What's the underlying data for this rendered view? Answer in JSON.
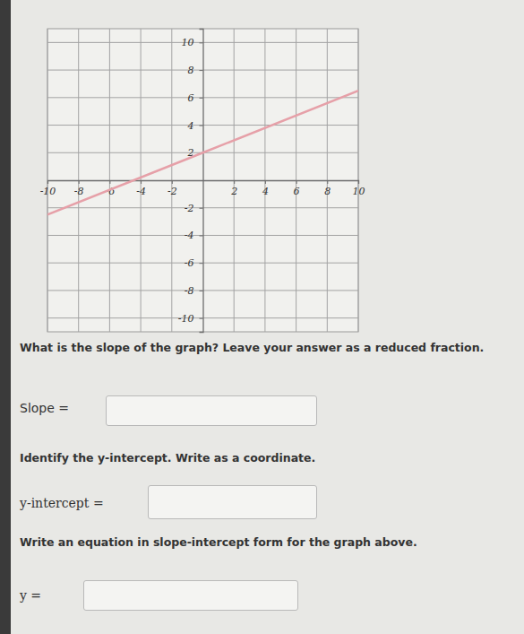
{
  "chart_data": {
    "type": "line",
    "x": [
      -10,
      0,
      10
    ],
    "values": [
      -2.5,
      2,
      6.5
    ],
    "color": "#e6a0a8",
    "xlim": [
      -10,
      10
    ],
    "ylim": [
      -11,
      11
    ],
    "xticks": [
      -10,
      -8,
      -6,
      -4,
      -2,
      2,
      4,
      6,
      8,
      10
    ],
    "yticks": [
      -10,
      -8,
      -6,
      -4,
      -2,
      2,
      4,
      6,
      8,
      10
    ],
    "grid": true
  },
  "questions": [
    {
      "prompt": "What is the slope of the graph? Leave your answer as a reduced fraction.",
      "answer_label": "Slope ="
    },
    {
      "prompt": "Identify the y-intercept. Write as a coordinate.",
      "answer_label": "y-intercept ="
    },
    {
      "prompt": "Write an equation in slope-intercept form for the graph above.",
      "answer_label": "y ="
    }
  ]
}
